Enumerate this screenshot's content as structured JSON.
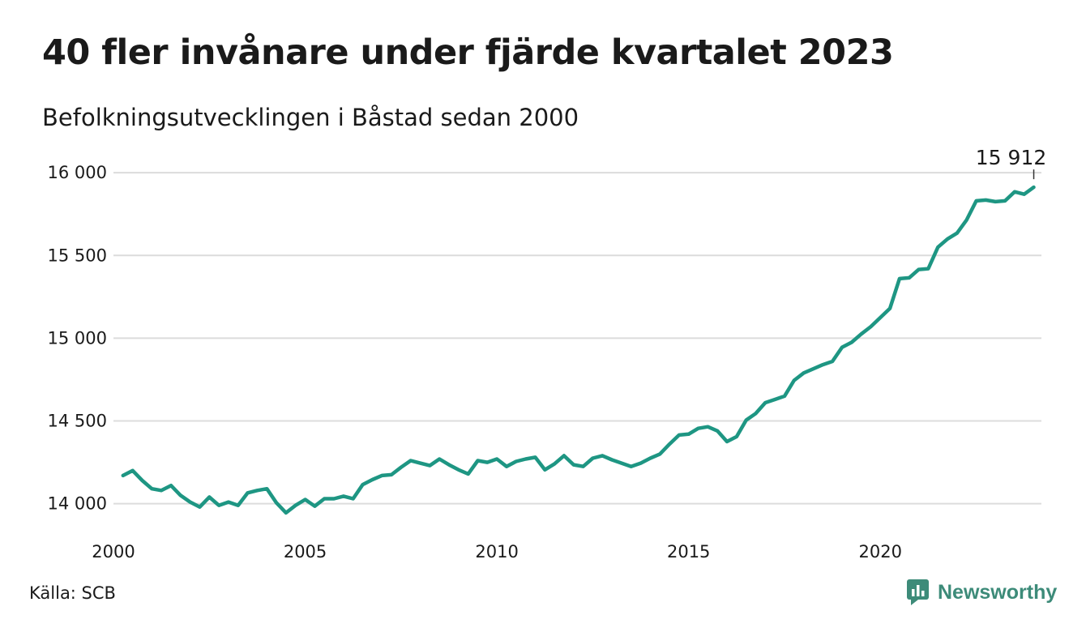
{
  "title": "40 fler invånare under fjärde kvartalet 2023",
  "subtitle": "Befolkningsutvecklingen i Båstad sedan 2000",
  "source": "Källa: SCB",
  "brand": {
    "name": "Newsworthy",
    "icon": "newsworthy-logo-icon",
    "color": "#3d8b79"
  },
  "chart_data": {
    "type": "line",
    "title": "40 fler invånare under fjärde kvartalet 2023",
    "subtitle": "Befolkningsutvecklingen i Båstad sedan 2000",
    "xlabel": "",
    "ylabel": "",
    "xlim": [
      2000,
      2024.2
    ],
    "ylim": [
      13910,
      16040
    ],
    "x_ticks": [
      2000,
      2005,
      2010,
      2015,
      2020
    ],
    "y_ticks": [
      14000,
      14500,
      15000,
      15500,
      16000
    ],
    "y_tick_labels": [
      "14 000",
      "14 500",
      "15 000",
      "15 500",
      "16 000"
    ],
    "grid": "horizontal",
    "line_color": "#1e9683",
    "end_label": "15 912",
    "series": [
      {
        "x": [
          2000.25,
          2000.5,
          2000.75,
          2001.0,
          2001.25,
          2001.5,
          2001.75,
          2002.0,
          2002.25,
          2002.5,
          2002.75,
          2003.0,
          2003.25,
          2003.5,
          2003.75,
          2004.0,
          2004.25,
          2004.5,
          2004.75,
          2005.0,
          2005.25,
          2005.5,
          2005.75,
          2006.0,
          2006.25,
          2006.5,
          2006.75,
          2007.0,
          2007.25,
          2007.5,
          2007.75,
          2008.0,
          2008.25,
          2008.5,
          2008.75,
          2009.0,
          2009.25,
          2009.5,
          2009.75,
          2010.0,
          2010.25,
          2010.5,
          2010.75,
          2011.0,
          2011.25,
          2011.5,
          2011.75,
          2012.0,
          2012.25,
          2012.5,
          2012.75,
          2013.0,
          2013.25,
          2013.5,
          2013.75,
          2014.0,
          2014.25,
          2014.5,
          2014.75,
          2015.0,
          2015.25,
          2015.5,
          2015.75,
          2016.0,
          2016.25,
          2016.5,
          2016.75,
          2017.0,
          2017.25,
          2017.5,
          2017.75,
          2018.0,
          2018.25,
          2018.5,
          2018.75,
          2019.0,
          2019.25,
          2019.5,
          2019.75,
          2020.0,
          2020.25,
          2020.5,
          2020.75,
          2021.0,
          2021.25,
          2021.5,
          2021.75,
          2022.0,
          2022.25,
          2022.5,
          2022.75,
          2023.0,
          2023.25,
          2023.5,
          2023.75,
          2024.0
        ],
        "y": [
          14170,
          14200,
          14140,
          14090,
          14080,
          14110,
          14050,
          14010,
          13980,
          14040,
          13990,
          14010,
          13990,
          14065,
          14080,
          14090,
          14005,
          13945,
          13990,
          14025,
          13985,
          14030,
          14030,
          14045,
          14030,
          14115,
          14145,
          14170,
          14175,
          14220,
          14260,
          14245,
          14230,
          14270,
          14235,
          14205,
          14180,
          14260,
          14250,
          14270,
          14225,
          14255,
          14270,
          14280,
          14205,
          14240,
          14290,
          14235,
          14225,
          14275,
          14290,
          14265,
          14245,
          14225,
          14245,
          14275,
          14300,
          14360,
          14415,
          14420,
          14455,
          14465,
          14440,
          14375,
          14405,
          14505,
          14545,
          14610,
          14630,
          14650,
          14745,
          14790,
          14815,
          14840,
          14860,
          14945,
          14975,
          15025,
          15070,
          15125,
          15180,
          15360,
          15365,
          15415,
          15420,
          15550,
          15600,
          15635,
          15715,
          15830,
          15835,
          15825,
          15830,
          15885,
          15870,
          15912
        ]
      }
    ]
  }
}
